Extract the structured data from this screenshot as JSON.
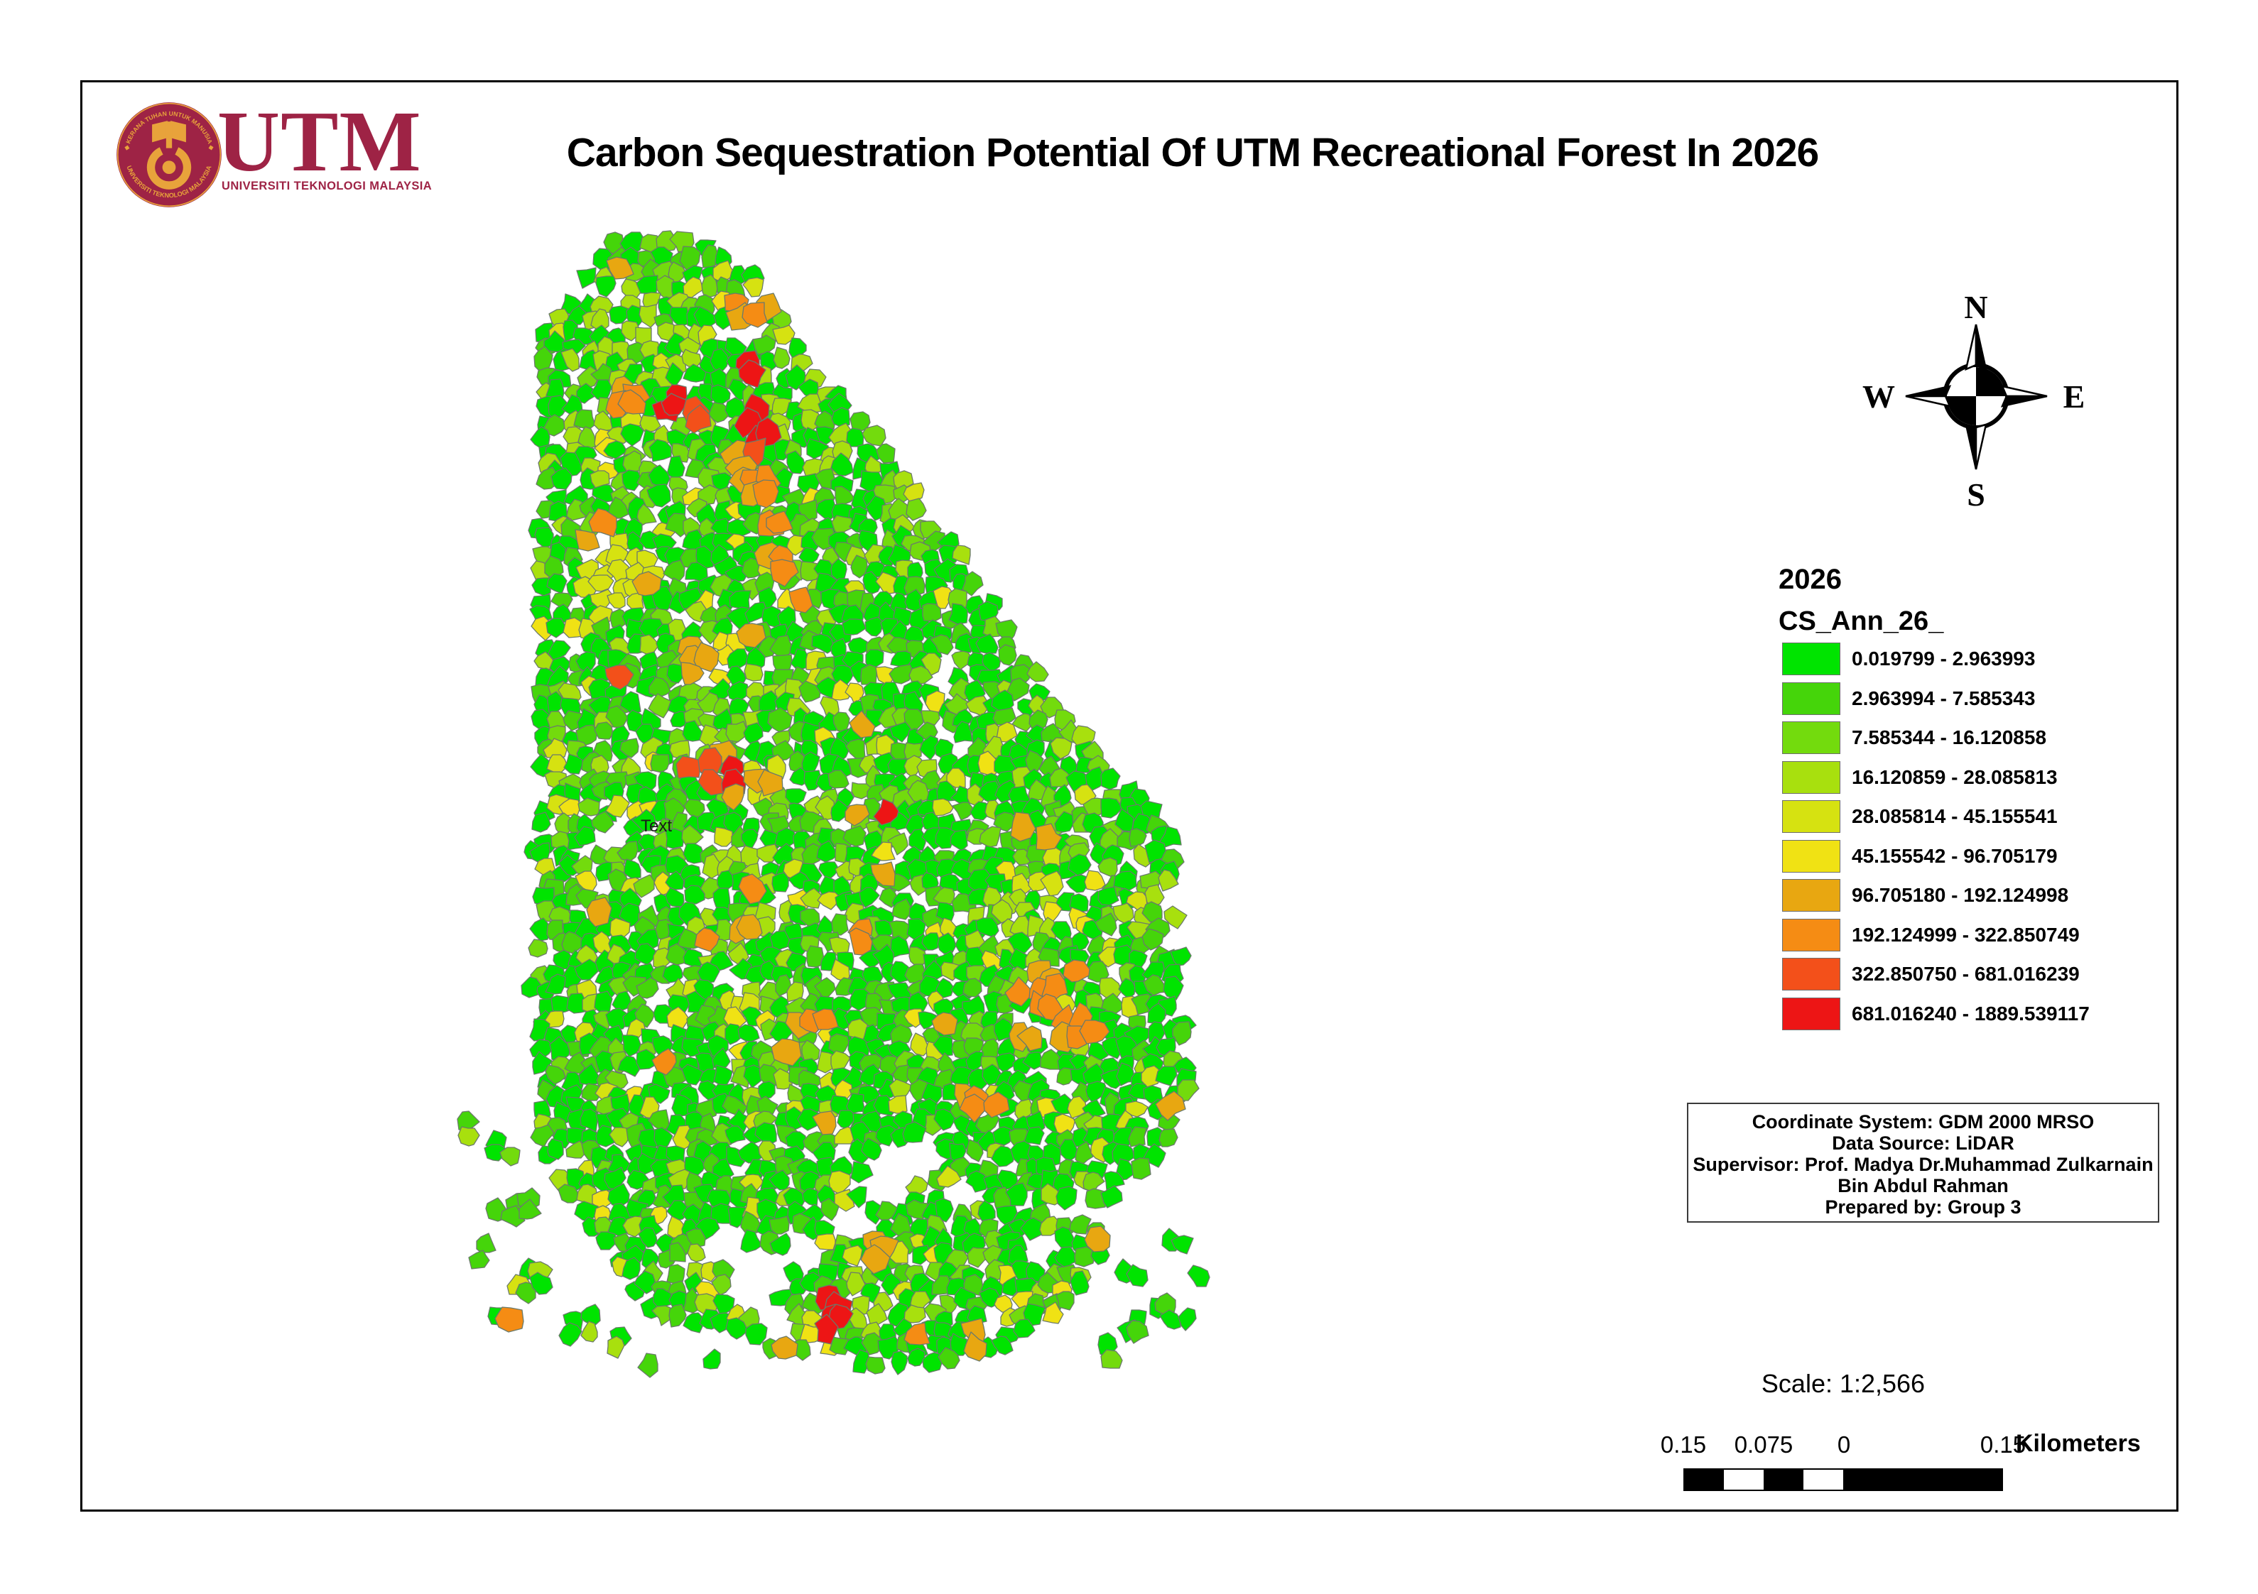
{
  "window": {
    "bg": "#FFFFFF",
    "border_color": "#000000"
  },
  "header": {
    "title": "Carbon Sequestration Potential Of UTM Recreational Forest In 2026"
  },
  "logo": {
    "wordmark": "UTM",
    "subtitle": "UNIVERSITI TEKNOLOGI MALAYSIA",
    "seal_top_text": "◆ KERANA TUHAN UNTUK MANUSIA ◆",
    "seal_bottom_text": "UNIVERSITI TEKNOLOGI MALAYSIA",
    "maroon": "#9E2345",
    "gold": "#E8A33B"
  },
  "compass": {
    "north": "N",
    "east": "E",
    "south": "S",
    "west": "W"
  },
  "legend": {
    "year_label": "2026",
    "field_label": "CS_Ann_26_",
    "classes": [
      {
        "color": "#00E400",
        "label": "0.019799 - 2.963993"
      },
      {
        "color": "#45D50A",
        "label": "2.963994 - 7.585343"
      },
      {
        "color": "#73DB0D",
        "label": "7.585344 - 16.120858"
      },
      {
        "color": "#A8E00E",
        "label": "16.120859 - 28.085813"
      },
      {
        "color": "#D6E211",
        "label": "28.085814 - 45.155541"
      },
      {
        "color": "#F0E214",
        "label": "45.155542 - 96.705179"
      },
      {
        "color": "#E8A711",
        "label": "96.705180 - 192.124998"
      },
      {
        "color": "#F58C14",
        "label": "192.124999 - 322.850749"
      },
      {
        "color": "#F3501A",
        "label": "322.850750 - 681.016239"
      },
      {
        "color": "#ED1515",
        "label": "681.016240 - 1889.539117"
      }
    ]
  },
  "info_box": {
    "lines": [
      "Coordinate System: GDM 2000 MRSO",
      "Data Source: LiDAR",
      "Supervisor: Prof. Madya Dr.Muhammad Zulkarnain",
      "Bin Abdul Rahman",
      "Prepared by: Group 3"
    ]
  },
  "scale_info": {
    "text": "Scale: 1:2,566"
  },
  "scale_bar": {
    "labels": [
      "0.15",
      "0.075",
      "0",
      "0.15"
    ],
    "unit_label": "Kilometers"
  },
  "map": {
    "stray_label": "Text",
    "outline_color": "#6B7A6B",
    "seed": 7,
    "spacing": 21,
    "skip_probability": 0.055,
    "class_weights": [
      0.565,
      0.21,
      0.09,
      0.06,
      0.038,
      0.022,
      0.008,
      0.004,
      0.002,
      0.001
    ],
    "boundary": [
      [
        812,
        408
      ],
      [
        828,
        368
      ],
      [
        862,
        342
      ],
      [
        905,
        338
      ],
      [
        942,
        330
      ],
      [
        985,
        342
      ],
      [
        1025,
        352
      ],
      [
        1058,
        372
      ],
      [
        1072,
        402
      ],
      [
        1100,
        440
      ],
      [
        1125,
        480
      ],
      [
        1150,
        520
      ],
      [
        1185,
        560
      ],
      [
        1225,
        600
      ],
      [
        1255,
        650
      ],
      [
        1300,
        700
      ],
      [
        1335,
        755
      ],
      [
        1380,
        810
      ],
      [
        1415,
        865
      ],
      [
        1445,
        920
      ],
      [
        1480,
        970
      ],
      [
        1520,
        1020
      ],
      [
        1555,
        1070
      ],
      [
        1590,
        1110
      ],
      [
        1625,
        1140
      ],
      [
        1650,
        1180
      ],
      [
        1655,
        1240
      ],
      [
        1662,
        1300
      ],
      [
        1668,
        1360
      ],
      [
        1672,
        1420
      ],
      [
        1668,
        1480
      ],
      [
        1672,
        1540
      ],
      [
        1655,
        1590
      ],
      [
        1620,
        1640
      ],
      [
        1580,
        1680
      ],
      [
        1545,
        1720
      ],
      [
        1560,
        1760
      ],
      [
        1540,
        1800
      ],
      [
        1500,
        1840
      ],
      [
        1460,
        1870
      ],
      [
        1420,
        1895
      ],
      [
        1375,
        1912
      ],
      [
        1330,
        1930
      ],
      [
        1285,
        1915
      ],
      [
        1240,
        1932
      ],
      [
        1195,
        1918
      ],
      [
        1150,
        1898
      ],
      [
        1105,
        1915
      ],
      [
        1060,
        1892
      ],
      [
        1015,
        1868
      ],
      [
        970,
        1878
      ],
      [
        928,
        1852
      ],
      [
        890,
        1820
      ],
      [
        855,
        1782
      ],
      [
        822,
        1740
      ],
      [
        795,
        1692
      ],
      [
        772,
        1640
      ],
      [
        758,
        1585
      ],
      [
        752,
        1525
      ],
      [
        758,
        1465
      ],
      [
        748,
        1405
      ],
      [
        754,
        1345
      ],
      [
        747,
        1285
      ],
      [
        753,
        1225
      ],
      [
        746,
        1165
      ],
      [
        754,
        1105
      ],
      [
        748,
        1045
      ],
      [
        755,
        985
      ],
      [
        749,
        925
      ],
      [
        756,
        865
      ],
      [
        750,
        805
      ],
      [
        756,
        745
      ],
      [
        751,
        685
      ],
      [
        757,
        625
      ],
      [
        752,
        565
      ],
      [
        758,
        505
      ],
      [
        766,
        455
      ],
      [
        788,
        425
      ]
    ],
    "holes": [
      [
        1062,
        1808,
        42
      ],
      [
        1022,
        1754,
        30
      ],
      [
        1092,
        1868,
        26
      ],
      [
        1252,
        1662,
        40
      ],
      [
        1300,
        1628,
        28
      ],
      [
        1205,
        1725,
        30
      ],
      [
        1355,
        1685,
        24
      ],
      [
        900,
        1522,
        22
      ],
      [
        1330,
        952,
        20
      ],
      [
        868,
        1180,
        18
      ],
      [
        1520,
        1700,
        22
      ],
      [
        1470,
        1760,
        20
      ],
      [
        1130,
        1760,
        26
      ]
    ],
    "islands": [
      [
        705,
        1618,
        22
      ],
      [
        722,
        1700,
        26
      ],
      [
        686,
        1762,
        20
      ],
      [
        752,
        1806,
        24
      ],
      [
        708,
        1846,
        18
      ],
      [
        662,
        1592,
        14
      ],
      [
        815,
        1866,
        22
      ],
      [
        868,
        1886,
        20
      ],
      [
        1640,
        1850,
        20
      ],
      [
        1600,
        1792,
        18
      ],
      [
        1660,
        1742,
        16
      ],
      [
        1622,
        1692,
        14
      ],
      [
        1600,
        1870,
        18
      ],
      [
        1660,
        1862,
        14
      ],
      [
        1560,
        1906,
        16
      ],
      [
        1700,
        1800,
        14
      ],
      [
        920,
        1920,
        16
      ],
      [
        1000,
        1915,
        14
      ]
    ],
    "hotspots": [
      [
        1015,
        422,
        18,
        5
      ],
      [
        1050,
        430,
        22,
        7
      ],
      [
        1068,
        456,
        20,
        7
      ],
      [
        1050,
        522,
        16,
        9
      ],
      [
        880,
        562,
        20,
        7
      ],
      [
        950,
        570,
        18,
        9
      ],
      [
        976,
        576,
        16,
        8
      ],
      [
        855,
        630,
        20,
        5
      ],
      [
        872,
        660,
        18,
        5
      ],
      [
        1056,
        582,
        14,
        9
      ],
      [
        1064,
        608,
        16,
        9
      ],
      [
        1066,
        640,
        16,
        9
      ],
      [
        1030,
        652,
        16,
        6
      ],
      [
        1066,
        680,
        16,
        7
      ],
      [
        1070,
        708,
        16,
        7
      ],
      [
        1090,
        744,
        18,
        7
      ],
      [
        1048,
        756,
        16,
        5
      ],
      [
        1100,
        788,
        18,
        7
      ],
      [
        1040,
        902,
        22,
        5
      ],
      [
        986,
        916,
        20,
        7
      ],
      [
        1020,
        940,
        16,
        5
      ],
      [
        976,
        956,
        14,
        6
      ],
      [
        990,
        1086,
        22,
        8
      ],
      [
        1038,
        1094,
        16,
        9
      ],
      [
        1080,
        1098,
        18,
        6
      ],
      [
        915,
        1130,
        16,
        4
      ],
      [
        826,
        1252,
        18,
        5
      ],
      [
        836,
        1282,
        14,
        6
      ],
      [
        1050,
        1312,
        18,
        6
      ],
      [
        1106,
        1264,
        22,
        5
      ],
      [
        1158,
        1372,
        18,
        5
      ],
      [
        1212,
        1312,
        18,
        7
      ],
      [
        1124,
        1440,
        16,
        7
      ],
      [
        1148,
        1442,
        16,
        7
      ],
      [
        1042,
        1480,
        16,
        5
      ],
      [
        1106,
        1482,
        16,
        6
      ],
      [
        1465,
        1396,
        30,
        7
      ],
      [
        1502,
        1442,
        24,
        7
      ],
      [
        1446,
        1452,
        22,
        6
      ],
      [
        1532,
        1302,
        22,
        5
      ],
      [
        1562,
        1332,
        18,
        4
      ],
      [
        1492,
        1282,
        20,
        5
      ],
      [
        1472,
        1242,
        18,
        4
      ],
      [
        1380,
        1546,
        18,
        7
      ],
      [
        1050,
        1580,
        16,
        4
      ],
      [
        1192,
        1594,
        16,
        4
      ],
      [
        1170,
        1852,
        24,
        9
      ],
      [
        1296,
        1882,
        18,
        7
      ],
      [
        1376,
        1878,
        20,
        6
      ],
      [
        1420,
        1840,
        20,
        5
      ],
      [
        1105,
        1888,
        16,
        6
      ],
      [
        920,
        1704,
        16,
        5
      ],
      [
        1598,
        1270,
        18,
        4
      ],
      [
        835,
        1075,
        14,
        4
      ],
      [
        1240,
        1760,
        18,
        6
      ],
      [
        905,
        480,
        80,
        3
      ],
      [
        940,
        690,
        70,
        2
      ],
      [
        862,
        812,
        60,
        4
      ],
      [
        1052,
        1262,
        70,
        3
      ],
      [
        1430,
        1310,
        60,
        3
      ],
      [
        1100,
        1452,
        60,
        2
      ],
      [
        992,
        1022,
        60,
        2
      ],
      [
        1622,
        1282,
        50,
        3
      ],
      [
        1252,
        1852,
        60,
        3
      ],
      [
        922,
        1880,
        50,
        2
      ],
      [
        1502,
        1152,
        50,
        2
      ],
      [
        832,
        632,
        50,
        3
      ],
      [
        1182,
        642,
        50,
        3
      ],
      [
        1082,
        982,
        50,
        3
      ],
      [
        1380,
        1780,
        40,
        2
      ],
      [
        1682,
        1502,
        40,
        2
      ],
      [
        1120,
        560,
        60,
        3
      ],
      [
        950,
        380,
        60,
        2
      ],
      [
        1280,
        740,
        50,
        2
      ],
      [
        1500,
        1000,
        40,
        2
      ]
    ]
  }
}
